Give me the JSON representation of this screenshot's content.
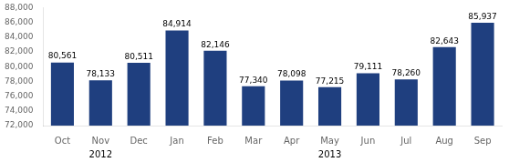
{
  "chart_data": {
    "type": "bar",
    "categories": [
      "Oct",
      "Nov",
      "Dec",
      "Jan",
      "Feb",
      "Mar",
      "Apr",
      "May",
      "Jun",
      "Jul",
      "Aug",
      "Sep"
    ],
    "values": [
      80561,
      78133,
      80511,
      84914,
      82146,
      77340,
      78098,
      77215,
      79111,
      78260,
      82643,
      85937
    ],
    "value_labels": [
      "80,561",
      "78,133",
      "80,511",
      "84,914",
      "82,146",
      "77,340",
      "78,098",
      "77,215",
      "79,111",
      "78,260",
      "82,643",
      "85,937"
    ],
    "data_labels": true,
    "color": "#1F3F7F",
    "ylim": [
      72000,
      88000
    ],
    "yticks": [
      {
        "value": 72000,
        "label": "72,000"
      },
      {
        "value": 74000,
        "label": "74,000"
      },
      {
        "value": 76000,
        "label": "76,000"
      },
      {
        "value": 78000,
        "label": "78,000"
      },
      {
        "value": 80000,
        "label": "80,000"
      },
      {
        "value": 82000,
        "label": "82,000"
      },
      {
        "value": 84000,
        "label": "84,000"
      },
      {
        "value": 86000,
        "label": "86,000"
      },
      {
        "value": 88000,
        "label": "88,000"
      }
    ],
    "grid": false,
    "annotations": [
      {
        "text": "2012",
        "x": "Nov"
      },
      {
        "text": "2013",
        "x": "May"
      }
    ]
  }
}
